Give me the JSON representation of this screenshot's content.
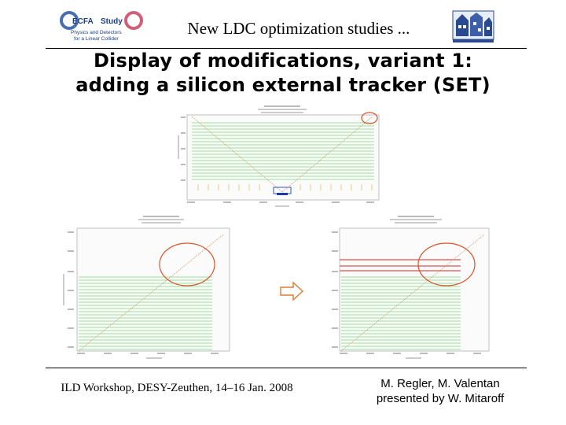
{
  "header": {
    "title": "New LDC optimization studies ...",
    "ecfa_logo_text": [
      "ECFA",
      "Study",
      "Physics and Detectors",
      "for a Linear Collider"
    ]
  },
  "slide": {
    "title_line1": "Display of modifications, variant 1:",
    "title_line2": "adding a silicon external tracker (SET)"
  },
  "footer": {
    "left": "ILD Workshop, DESY-Zeuthen, 14–16 Jan. 2008",
    "right_line1": "M. Regler, M. Valentan",
    "right_line2": "presented by W. Mitaroff"
  },
  "colors": {
    "detector_line": "#7ad97a",
    "set_layer": "#e05050",
    "highlight_circle": "#d9542b",
    "arrow": "#e07a30",
    "track": "#c89060"
  }
}
